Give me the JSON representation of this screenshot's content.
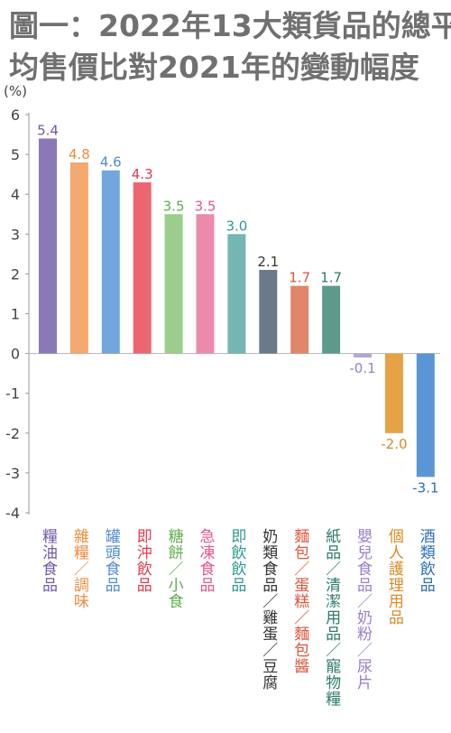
{
  "title_lines": [
    "圖一：2022年13大類貨品的總平",
    "均售價比對2021年的變動幅度"
  ],
  "chart_data": {
    "type": "bar",
    "ylabel": "(%)",
    "ylim": [
      -4,
      6
    ],
    "yticks": [
      6,
      5,
      4,
      3,
      2,
      1,
      0,
      -1,
      -2,
      -3,
      -4
    ],
    "grid": false,
    "categories": [
      "糧油食品",
      "雜糧／調味",
      "罐頭食品",
      "即沖飲品",
      "糖餅／小食",
      "急凍食品",
      "即飲飲品",
      "奶類食品／雞蛋／豆腐",
      "麵包／蛋糕／麵包醬",
      "紙品／清潔用品／寵物糧",
      "嬰兒食品／奶粉／尿片",
      "個人護理用品",
      "酒類飲品"
    ],
    "values": [
      5.4,
      4.8,
      4.6,
      4.3,
      3.5,
      3.5,
      3.0,
      2.1,
      1.7,
      1.7,
      -0.1,
      -2.0,
      -3.1
    ],
    "value_labels": [
      "5.4",
      "4.8",
      "4.6",
      "4.3",
      "3.5",
      "3.5",
      "3.0",
      "2.1",
      "1.7",
      "1.7",
      "-0.1",
      "-2.0",
      "-3.1"
    ],
    "colors": [
      "#8b78b6",
      "#f4a96f",
      "#72a6de",
      "#ec6670",
      "#9ccd8c",
      "#ec8aab",
      "#74b6b4",
      "#6a7a8b",
      "#e0866a",
      "#5e9a8c",
      "#b6a4d6",
      "#e5a246",
      "#5a95d4"
    ],
    "label_colors": [
      "#6f5aa6",
      "#f08a3c",
      "#4f8cd6",
      "#e23a4a",
      "#5fae4f",
      "#e5558a",
      "#2f9a93",
      "#333333",
      "#e2533a",
      "#2e7a6a",
      "#9a7fca",
      "#d98a20",
      "#2a6fb8"
    ]
  }
}
